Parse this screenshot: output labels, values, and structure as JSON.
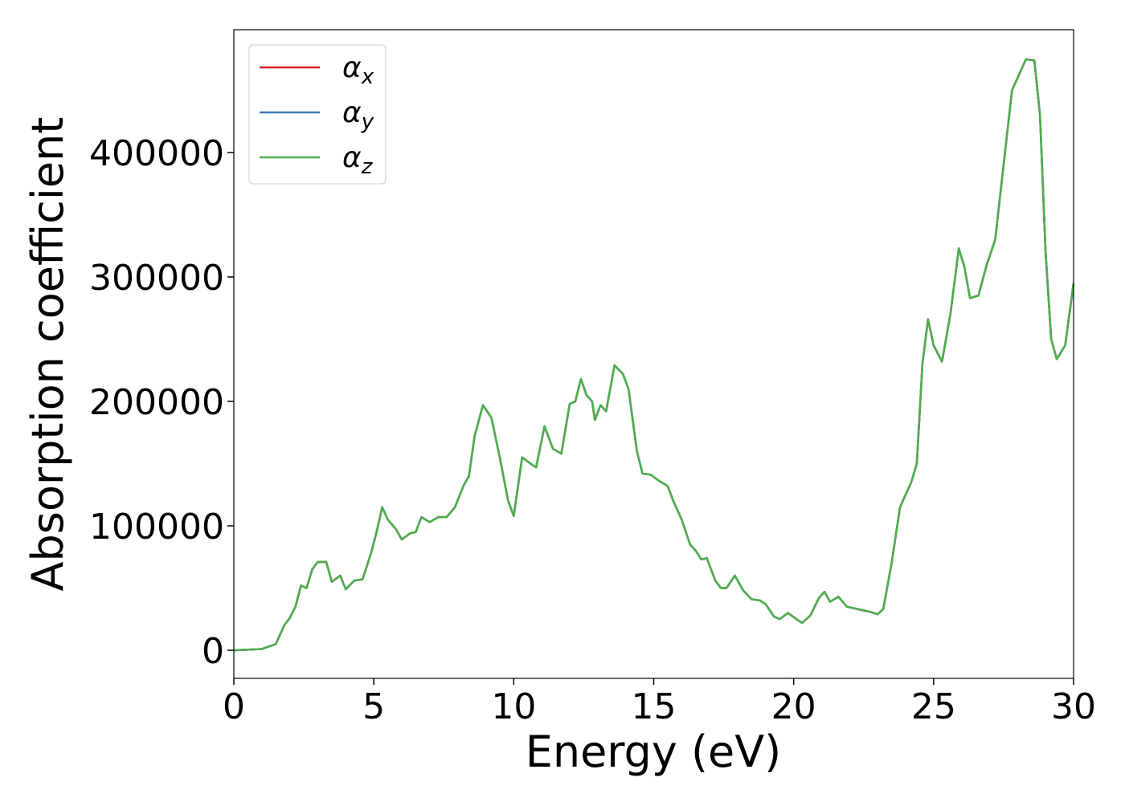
{
  "chart_data": {
    "type": "line",
    "xlabel": "Energy (eV)",
    "ylabel": "Absorption coefficient",
    "xlim": [
      0,
      30
    ],
    "xticks": [
      0,
      5,
      10,
      15,
      20,
      25,
      30
    ],
    "ylim": [
      -22580,
      498700
    ],
    "yticks": [
      0,
      100000,
      200000,
      300000,
      400000
    ],
    "legend": "upper left",
    "x": [
      0,
      1,
      1.5,
      1.8,
      2.0,
      2.2,
      2.4,
      2.6,
      2.8,
      3.0,
      3.3,
      3.5,
      3.8,
      4.0,
      4.3,
      4.6,
      4.9,
      5.1,
      5.3,
      5.5,
      5.8,
      6.0,
      6.3,
      6.5,
      6.7,
      7.0,
      7.3,
      7.6,
      7.9,
      8.2,
      8.4,
      8.6,
      8.9,
      9.2,
      9.5,
      9.8,
      10.0,
      10.3,
      10.6,
      10.8,
      11.1,
      11.4,
      11.7,
      12.0,
      12.2,
      12.4,
      12.6,
      12.8,
      12.9,
      13.1,
      13.3,
      13.6,
      13.9,
      14.1,
      14.4,
      14.6,
      14.9,
      15.2,
      15.5,
      15.7,
      16.0,
      16.3,
      16.5,
      16.7,
      16.9,
      17.2,
      17.4,
      17.6,
      17.9,
      18.2,
      18.5,
      18.8,
      19.0,
      19.3,
      19.5,
      19.8,
      20.1,
      20.3,
      20.6,
      20.9,
      21.1,
      21.3,
      21.6,
      21.9,
      22.3,
      22.7,
      23.0,
      23.2,
      23.5,
      23.8,
      24.2,
      24.4,
      24.6,
      24.8,
      25.0,
      25.3,
      25.6,
      25.9,
      26.1,
      26.3,
      26.6,
      26.9,
      27.2,
      27.5,
      27.8,
      28.1,
      28.3,
      28.6,
      28.8,
      29.0,
      29.2,
      29.4,
      29.7,
      30.0
    ],
    "series": [
      {
        "name": "αx",
        "color": "#e41a1c",
        "values": [
          0,
          1000,
          5000,
          20000,
          26000,
          35000,
          52000,
          50000,
          65000,
          71000,
          71000,
          55000,
          60000,
          49000,
          56000,
          57000,
          78000,
          95000,
          115000,
          105000,
          97000,
          89000,
          94000,
          95000,
          107000,
          103000,
          107000,
          107000,
          115000,
          132000,
          140000,
          172000,
          197000,
          187000,
          155000,
          120000,
          108000,
          155000,
          150000,
          147000,
          180000,
          162000,
          158000,
          198000,
          200000,
          218000,
          205000,
          200000,
          185000,
          197000,
          192000,
          229000,
          222000,
          210000,
          160000,
          142000,
          141000,
          136000,
          132000,
          120000,
          105000,
          85000,
          80000,
          73000,
          74000,
          56000,
          50000,
          50000,
          60000,
          48000,
          41000,
          40000,
          37000,
          27000,
          25000,
          30000,
          25000,
          22000,
          28000,
          42000,
          47000,
          39000,
          43000,
          35000,
          33000,
          31000,
          29000,
          33000,
          70000,
          115000,
          135000,
          150000,
          230000,
          266000,
          245000,
          232000,
          270000,
          323000,
          308000,
          283000,
          285000,
          310000,
          330000,
          390000,
          450000,
          465000,
          475000,
          474000,
          430000,
          320000,
          250000,
          234000,
          245000,
          295000
        ]
      },
      {
        "name": "αy",
        "color": "#377eb8",
        "values": [
          0,
          1000,
          5000,
          20000,
          26000,
          35000,
          52000,
          50000,
          65000,
          71000,
          71000,
          55000,
          60000,
          49000,
          56000,
          57000,
          78000,
          95000,
          115000,
          105000,
          97000,
          89000,
          94000,
          95000,
          107000,
          103000,
          107000,
          107000,
          115000,
          132000,
          140000,
          172000,
          197000,
          187000,
          155000,
          120000,
          108000,
          155000,
          150000,
          147000,
          180000,
          162000,
          158000,
          198000,
          200000,
          218000,
          205000,
          200000,
          185000,
          197000,
          192000,
          229000,
          222000,
          210000,
          160000,
          142000,
          141000,
          136000,
          132000,
          120000,
          105000,
          85000,
          80000,
          73000,
          74000,
          56000,
          50000,
          50000,
          60000,
          48000,
          41000,
          40000,
          37000,
          27000,
          25000,
          30000,
          25000,
          22000,
          28000,
          42000,
          47000,
          39000,
          43000,
          35000,
          33000,
          31000,
          29000,
          33000,
          70000,
          115000,
          135000,
          150000,
          230000,
          266000,
          245000,
          232000,
          270000,
          323000,
          308000,
          283000,
          285000,
          310000,
          330000,
          390000,
          450000,
          465000,
          475000,
          474000,
          430000,
          320000,
          250000,
          234000,
          245000,
          295000
        ]
      },
      {
        "name": "αz",
        "color": "#4daf4a",
        "values": [
          0,
          1000,
          5000,
          20000,
          26000,
          35000,
          52000,
          50000,
          65000,
          71000,
          71000,
          55000,
          60000,
          49000,
          56000,
          57000,
          78000,
          95000,
          115000,
          105000,
          97000,
          89000,
          94000,
          95000,
          107000,
          103000,
          107000,
          107000,
          115000,
          132000,
          140000,
          172000,
          197000,
          187000,
          155000,
          120000,
          108000,
          155000,
          150000,
          147000,
          180000,
          162000,
          158000,
          198000,
          200000,
          218000,
          205000,
          200000,
          185000,
          197000,
          192000,
          229000,
          222000,
          210000,
          160000,
          142000,
          141000,
          136000,
          132000,
          120000,
          105000,
          85000,
          80000,
          73000,
          74000,
          56000,
          50000,
          50000,
          60000,
          48000,
          41000,
          40000,
          37000,
          27000,
          25000,
          30000,
          25000,
          22000,
          28000,
          42000,
          47000,
          39000,
          43000,
          35000,
          33000,
          31000,
          29000,
          33000,
          70000,
          115000,
          135000,
          150000,
          230000,
          266000,
          245000,
          232000,
          270000,
          323000,
          308000,
          283000,
          285000,
          310000,
          330000,
          390000,
          450000,
          465000,
          475000,
          474000,
          430000,
          320000,
          250000,
          234000,
          245000,
          295000
        ]
      }
    ]
  }
}
